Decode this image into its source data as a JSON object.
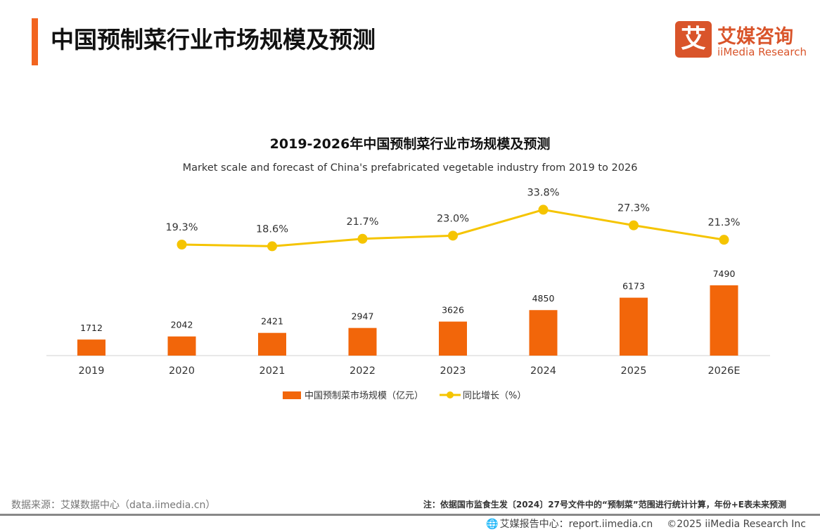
{
  "header": {
    "title": "中国预制菜行业市场规模及预测"
  },
  "logo": {
    "mark": "艾",
    "cn": "艾媒咨询",
    "en": "iiMedia Research"
  },
  "chart_data": {
    "type": "bar+line",
    "title": "2019-2026年中国预制菜行业市场规模及预测",
    "subtitle": "Market scale and forecast of China's prefabricated vegetable industry from 2019 to 2026",
    "categories": [
      "2019",
      "2020",
      "2021",
      "2022",
      "2023",
      "2024",
      "2025",
      "2026E"
    ],
    "series": [
      {
        "name": "中国预制菜市场规模（亿元）",
        "type": "bar",
        "color": "#f2660a",
        "values": [
          1712,
          2042,
          2421,
          2947,
          3626,
          4850,
          6173,
          7490
        ]
      },
      {
        "name": "同比增长（%）",
        "type": "line",
        "color": "#f5c400",
        "values": [
          null,
          19.3,
          18.6,
          21.7,
          23.0,
          33.8,
          27.3,
          21.3
        ],
        "labels": [
          "",
          "19.3%",
          "18.6%",
          "21.7%",
          "23.0%",
          "33.8%",
          "27.3%",
          "21.3%"
        ]
      }
    ],
    "legend": "bottom",
    "grid": false
  },
  "footer": {
    "source": "数据来源：艾媒数据中心（data.iimedia.cn）",
    "note": "注：依据国市监食生发〔2024〕27号文件中的“预制菜”范围进行统计计算，年份+E表未来预测",
    "report": "艾媒报告中心：report.iimedia.cn",
    "copyright": "©2025  iiMedia Research  Inc"
  }
}
